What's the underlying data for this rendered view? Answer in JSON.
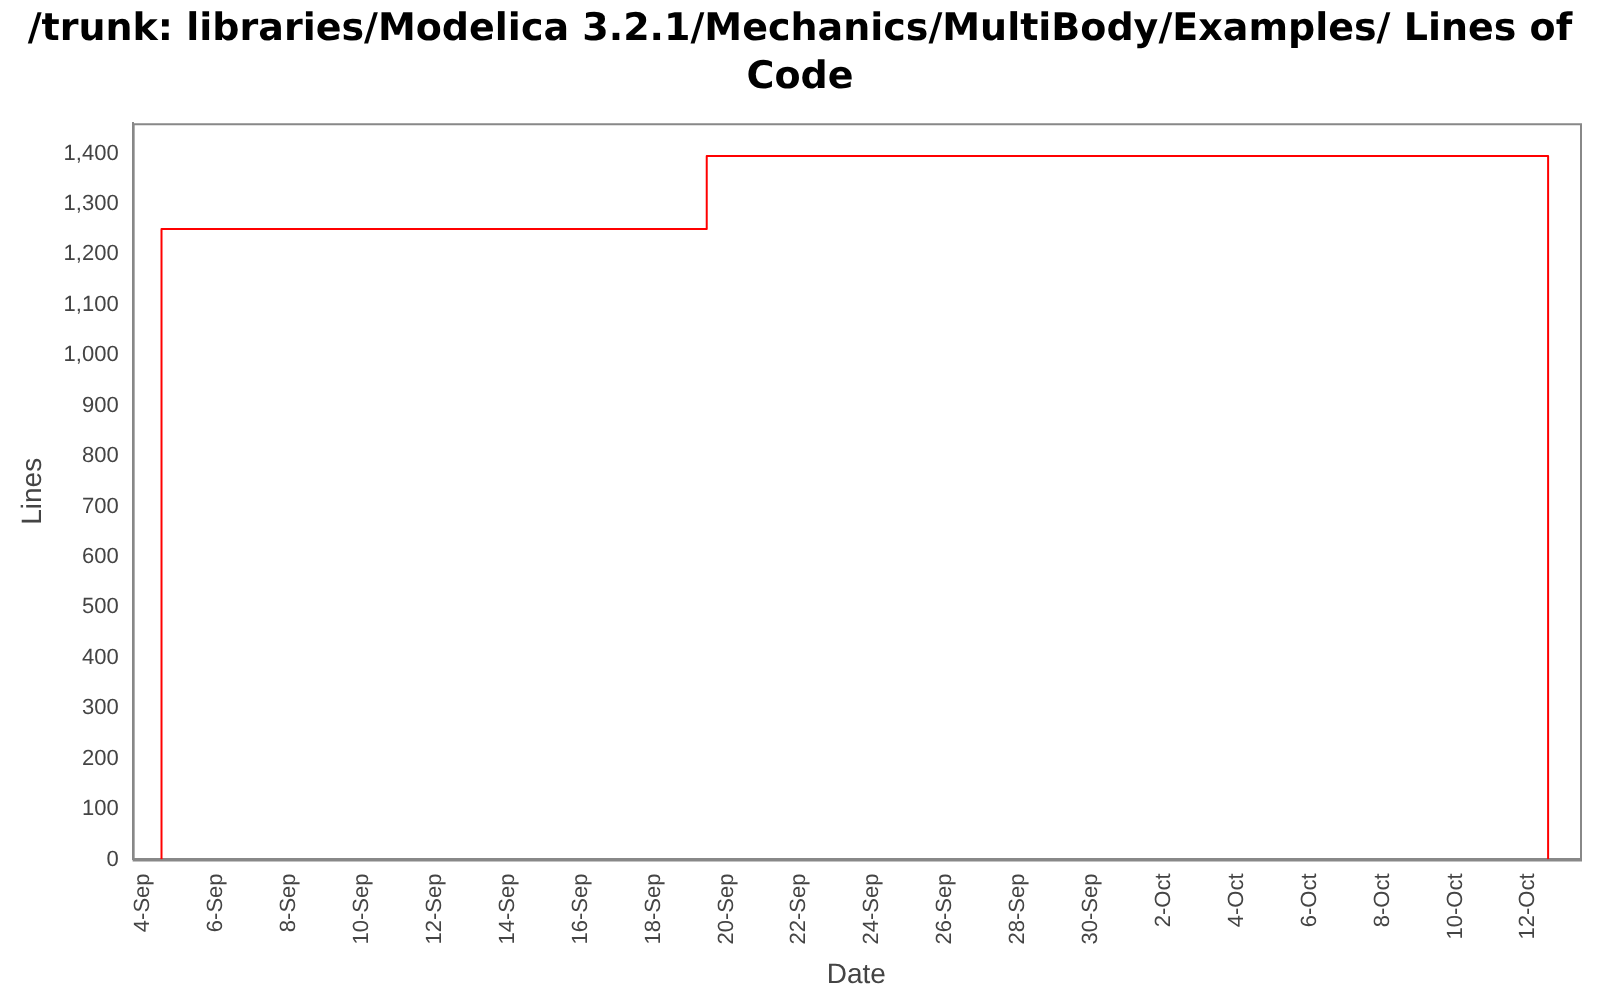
{
  "chart_data": {
    "type": "step",
    "title": "/trunk: libraries/Modelica 3.2.1/Mechanics/MultiBody/Examples/ Lines of Code",
    "xlabel": "Date",
    "ylabel": "Lines",
    "x": [
      "--09-04T12:00",
      "--09-04T12:00",
      "--09-19T11:00",
      "--09-19T11:00",
      "--10-12T13:00",
      "--10-12T13:00"
    ],
    "series": [
      {
        "color": "#ff0000",
        "values": [
          0,
          1250,
          1250,
          1395,
          1395,
          0
        ]
      }
    ],
    "xlim": [
      "--09-03T17:00",
      "--10-13T10:00"
    ],
    "xticks": [
      {
        "value": "--09-04",
        "label": "4-Sep"
      },
      {
        "value": "--09-06",
        "label": "6-Sep"
      },
      {
        "value": "--09-08",
        "label": "8-Sep"
      },
      {
        "value": "--09-10",
        "label": "10-Sep"
      },
      {
        "value": "--09-12",
        "label": "12-Sep"
      },
      {
        "value": "--09-14",
        "label": "14-Sep"
      },
      {
        "value": "--09-16",
        "label": "16-Sep"
      },
      {
        "value": "--09-18",
        "label": "18-Sep"
      },
      {
        "value": "--09-20",
        "label": "20-Sep"
      },
      {
        "value": "--09-22",
        "label": "22-Sep"
      },
      {
        "value": "--09-24",
        "label": "24-Sep"
      },
      {
        "value": "--09-26",
        "label": "26-Sep"
      },
      {
        "value": "--09-28",
        "label": "28-Sep"
      },
      {
        "value": "--09-30",
        "label": "30-Sep"
      },
      {
        "value": "--10-02",
        "label": "2-Oct"
      },
      {
        "value": "--10-04",
        "label": "4-Oct"
      },
      {
        "value": "--10-06",
        "label": "6-Oct"
      },
      {
        "value": "--10-08",
        "label": "8-Oct"
      },
      {
        "value": "--10-10",
        "label": "10-Oct"
      },
      {
        "value": "--10-12",
        "label": "12-Oct"
      }
    ],
    "ylim": [
      0,
      1460
    ],
    "yticks": [
      0,
      100,
      200,
      300,
      400,
      500,
      600,
      700,
      800,
      900,
      {
        "value": 1000,
        "label": "1,000"
      },
      {
        "value": 1100,
        "label": "1,100"
      },
      {
        "value": 1200,
        "label": "1,200"
      },
      {
        "value": 1300,
        "label": "1,300"
      },
      {
        "value": 1400,
        "label": "1,400"
      }
    ],
    "grid": false,
    "legend": false
  }
}
